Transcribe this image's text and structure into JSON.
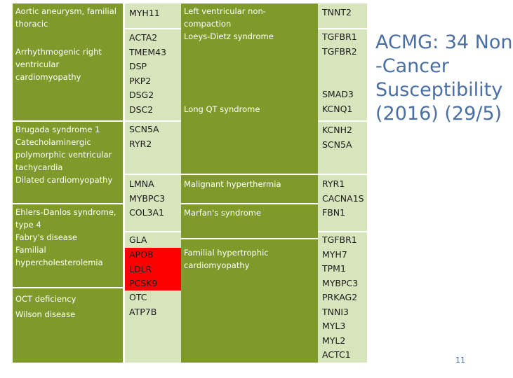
{
  "col1": {
    "b1": [
      "Aortic aneurysm, familial",
      "thoracic"
    ],
    "b2": [
      "Arrhythmogenic right",
      "ventricular",
      "cardiomyopathy"
    ],
    "b3": [
      "Brugada syndrome 1",
      "Catecholaminergic",
      "polymorphic ventricular",
      "tachycardia",
      "Dilated cardiomyopathy"
    ],
    "b4": [
      "Ehlers-Danlos syndrome,",
      "type 4",
      "Fabry's disease",
      "Familial",
      "hypercholesterolemia"
    ],
    "b5": [
      "OCT deficiency",
      "Wilson disease"
    ]
  },
  "col2": {
    "g1": [
      "MYH11"
    ],
    "g2": [
      "ACTA2",
      "TMEM43",
      "DSP",
      "PKP2",
      "DSG2",
      "DSC2"
    ],
    "g3": [
      "SCN5A",
      "RYR2"
    ],
    "g4": [
      "LMNA",
      "MYBPC3",
      "COL3A1"
    ],
    "g5": [
      "GLA"
    ],
    "red": [
      "APOB",
      "LDLR",
      "PCSK9"
    ],
    "g6": [
      "OTC",
      "ATP7B"
    ]
  },
  "col3": {
    "d1": [
      "Left ventricular non-",
      "compaction",
      "Loeys-Dietz syndrome"
    ],
    "d2": [
      "Long QT syndrome"
    ],
    "d3": [
      "Malignant hyperthermia"
    ],
    "d4": [
      "Marfan's syndrome"
    ],
    "d5": [
      "Familial hypertrophic",
      "cardiomyopathy"
    ]
  },
  "col4": {
    "g1": [
      "TNNT2"
    ],
    "g2": [
      "TGFBR1",
      "TGFBR2"
    ],
    "g3": [
      "SMAD3",
      "KCNQ1"
    ],
    "g4": [
      "KCNH2",
      "SCN5A"
    ],
    "g5": [
      "RYR1",
      "CACNA1S",
      "FBN1"
    ],
    "g6": [
      "TGFBR1",
      "MYH7",
      "TPM1",
      "MYBPC3",
      "PRKAG2",
      "TNNI3",
      "MYL3",
      "MYL2",
      "ACTC1"
    ]
  },
  "title": [
    "ACMG: 34 Non",
    "-Cancer",
    "Susceptibility",
    "(2016) (29/5)"
  ],
  "page_number": "11",
  "colors": {
    "disease": "#7f9a2a",
    "gene": "#d8e4bc",
    "highlight": "#ff0000",
    "title": "#4a6fa5"
  }
}
